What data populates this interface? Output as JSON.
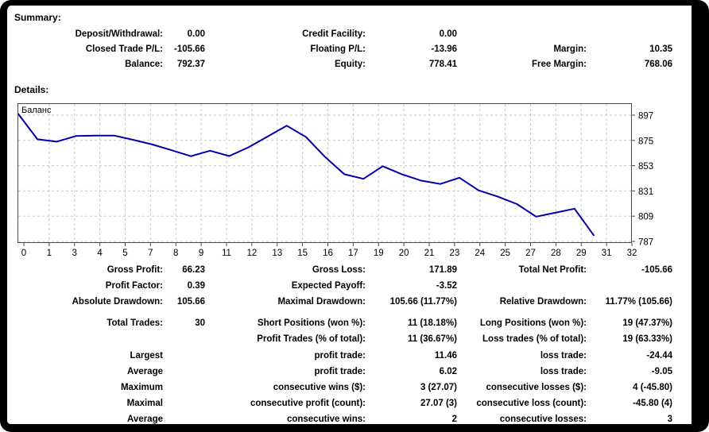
{
  "summary": {
    "heading": "Summary:",
    "rows": [
      {
        "c1l": "Deposit/Withdrawal:",
        "c1v": "0.00",
        "c2l": "Credit Facility:",
        "c2v": "0.00",
        "c3l": "",
        "c3v": ""
      },
      {
        "c1l": "Closed Trade P/L:",
        "c1v": "-105.66",
        "c2l": "Floating P/L:",
        "c2v": "-13.96",
        "c3l": "Margin:",
        "c3v": "10.35"
      },
      {
        "c1l": "Balance:",
        "c1v": "792.37",
        "c2l": "Equity:",
        "c2v": "778.41",
        "c3l": "Free Margin:",
        "c3v": "768.06"
      }
    ]
  },
  "details": {
    "heading": "Details:",
    "rows": [
      {
        "c1l": "Gross Profit:",
        "c1v": "66.23",
        "c2l": "Gross Loss:",
        "c2v": "171.89",
        "c3l": "Total Net Profit:",
        "c3v": "-105.66"
      },
      {
        "c1l": "Profit Factor:",
        "c1v": "0.39",
        "c2l": "Expected Payoff:",
        "c2v": "-3.52",
        "c3l": "",
        "c3v": ""
      },
      {
        "c1l": "Absolute Drawdown:",
        "c1v": "105.66",
        "c2l": "Maximal Drawdown:",
        "c2v": "105.66 (11.77%)",
        "c3l": "Relative Drawdown:",
        "c3v": "11.77% (105.66)"
      },
      {
        "c1l": "Total Trades:",
        "c1v": "30",
        "c2l": "Short Positions (won %):",
        "c2v": "11 (18.18%)",
        "c3l": "Long Positions (won %):",
        "c3v": "19 (47.37%)"
      },
      {
        "c1l": "",
        "c1v": "",
        "c2l": "Profit Trades (% of total):",
        "c2v": "11 (36.67%)",
        "c3l": "Loss trades (% of total):",
        "c3v": "19 (63.33%)"
      },
      {
        "c1l": "Largest",
        "c1v": "",
        "c2l": "profit trade:",
        "c2v": "11.46",
        "c3l": "loss trade:",
        "c3v": "-24.44"
      },
      {
        "c1l": "Average",
        "c1v": "",
        "c2l": "profit trade:",
        "c2v": "6.02",
        "c3l": "loss trade:",
        "c3v": "-9.05"
      },
      {
        "c1l": "Maximum",
        "c1v": "",
        "c2l": "consecutive wins ($):",
        "c2v": "3 (27.07)",
        "c3l": "consecutive losses ($):",
        "c3v": "4 (-45.80)"
      },
      {
        "c1l": "Maximal",
        "c1v": "",
        "c2l": "consecutive profit (count):",
        "c2v": "27.07 (3)",
        "c3l": "consecutive loss (count):",
        "c3v": "-45.80 (4)"
      },
      {
        "c1l": "Average",
        "c1v": "",
        "c2l": "consecutive wins:",
        "c2v": "2",
        "c3l": "consecutive losses:",
        "c3v": "3"
      }
    ]
  },
  "chart_data": {
    "type": "line",
    "title": "",
    "legend": "Баланс",
    "legend_position": "top-left",
    "grid": true,
    "series": [
      {
        "name": "Баланс",
        "values": [
          898.03,
          876.0,
          873.9,
          878.8,
          879.2,
          879.2,
          875.5,
          871.4,
          866.4,
          861.2,
          866.0,
          861.4,
          869.0,
          878.4,
          887.8,
          878.0,
          860.5,
          845.5,
          841.5,
          852.5,
          845.5,
          840.0,
          837.0,
          842.5,
          831.5,
          826.0,
          819.5,
          808.6,
          812.0,
          815.5,
          792.37
        ]
      }
    ],
    "x_start": 0,
    "x_step": 1,
    "xlim": [
      0,
      32
    ],
    "ylim": [
      786,
      907
    ],
    "x_tick_labels": [
      "0",
      "1",
      "3",
      "4",
      "5",
      "7",
      "8",
      "9",
      "11",
      "12",
      "13",
      "15",
      "16",
      "17",
      "19",
      "20",
      "21",
      "23",
      "24",
      "25",
      "27",
      "28",
      "29",
      "31",
      "32"
    ],
    "y_tick_labels": [
      "897",
      "875",
      "853",
      "831",
      "809",
      "787"
    ],
    "line_color": "#0000A8",
    "grid_color": "#c8c8c8",
    "axis_color": "#4a4a4a"
  }
}
